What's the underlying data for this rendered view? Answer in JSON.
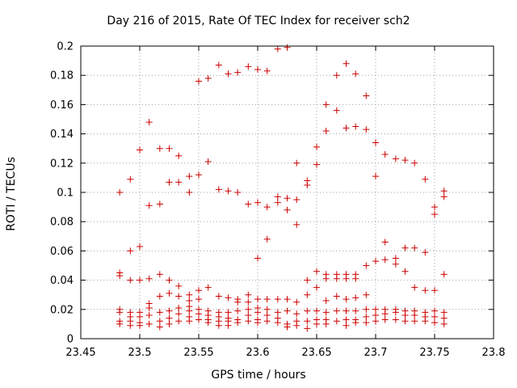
{
  "chart_data": {
    "type": "scatter",
    "title": "Day 216 of 2015, Rate Of TEC Index for receiver sch2",
    "xlabel": "GPS time / hours",
    "ylabel": "ROTI / TECUs",
    "xlim": [
      23.45,
      23.8
    ],
    "ylim": [
      0,
      0.2
    ],
    "xticks": [
      "23.45",
      "23.5",
      "23.55",
      "23.6",
      "23.65",
      "23.7",
      "23.75",
      "23.8"
    ],
    "yticks": [
      "0",
      "0.02",
      "0.04",
      "0.06",
      "0.08",
      "0.1",
      "0.12",
      "0.14",
      "0.16",
      "0.18",
      "0.2"
    ],
    "grid": true,
    "marker": "+",
    "color": "#cc0000",
    "series": [
      {
        "name": "ROTI",
        "points": [
          [
            23.483,
            0.1
          ],
          [
            23.483,
            0.045
          ],
          [
            23.483,
            0.043
          ],
          [
            23.483,
            0.02
          ],
          [
            23.483,
            0.018
          ],
          [
            23.483,
            0.012
          ],
          [
            23.483,
            0.01
          ],
          [
            23.492,
            0.109
          ],
          [
            23.492,
            0.06
          ],
          [
            23.492,
            0.04
          ],
          [
            23.492,
            0.018
          ],
          [
            23.492,
            0.015
          ],
          [
            23.492,
            0.012
          ],
          [
            23.492,
            0.009
          ],
          [
            23.5,
            0.129
          ],
          [
            23.5,
            0.063
          ],
          [
            23.5,
            0.04
          ],
          [
            23.5,
            0.018
          ],
          [
            23.5,
            0.015
          ],
          [
            23.5,
            0.011
          ],
          [
            23.5,
            0.009
          ],
          [
            23.508,
            0.148
          ],
          [
            23.508,
            0.091
          ],
          [
            23.508,
            0.041
          ],
          [
            23.508,
            0.024
          ],
          [
            23.508,
            0.021
          ],
          [
            23.508,
            0.016
          ],
          [
            23.508,
            0.01
          ],
          [
            23.517,
            0.13
          ],
          [
            23.517,
            0.092
          ],
          [
            23.517,
            0.044
          ],
          [
            23.517,
            0.029
          ],
          [
            23.517,
            0.018
          ],
          [
            23.517,
            0.012
          ],
          [
            23.517,
            0.008
          ],
          [
            23.525,
            0.13
          ],
          [
            23.525,
            0.107
          ],
          [
            23.525,
            0.04
          ],
          [
            23.525,
            0.031
          ],
          [
            23.525,
            0.019
          ],
          [
            23.525,
            0.014
          ],
          [
            23.525,
            0.01
          ],
          [
            23.533,
            0.125
          ],
          [
            23.533,
            0.107
          ],
          [
            23.533,
            0.036
          ],
          [
            23.533,
            0.029
          ],
          [
            23.533,
            0.021
          ],
          [
            23.533,
            0.017
          ],
          [
            23.533,
            0.012
          ],
          [
            23.542,
            0.111
          ],
          [
            23.542,
            0.1
          ],
          [
            23.542,
            0.03
          ],
          [
            23.542,
            0.026
          ],
          [
            23.542,
            0.022
          ],
          [
            23.542,
            0.019
          ],
          [
            23.542,
            0.015
          ],
          [
            23.542,
            0.012
          ],
          [
            23.55,
            0.176
          ],
          [
            23.55,
            0.112
          ],
          [
            23.55,
            0.033
          ],
          [
            23.55,
            0.027
          ],
          [
            23.55,
            0.02
          ],
          [
            23.55,
            0.017
          ],
          [
            23.55,
            0.013
          ],
          [
            23.558,
            0.178
          ],
          [
            23.558,
            0.121
          ],
          [
            23.558,
            0.035
          ],
          [
            23.558,
            0.019
          ],
          [
            23.558,
            0.016
          ],
          [
            23.558,
            0.013
          ],
          [
            23.558,
            0.011
          ],
          [
            23.567,
            0.187
          ],
          [
            23.567,
            0.102
          ],
          [
            23.567,
            0.029
          ],
          [
            23.567,
            0.018
          ],
          [
            23.567,
            0.015
          ],
          [
            23.567,
            0.012
          ],
          [
            23.567,
            0.009
          ],
          [
            23.575,
            0.181
          ],
          [
            23.575,
            0.101
          ],
          [
            23.575,
            0.028
          ],
          [
            23.575,
            0.018
          ],
          [
            23.575,
            0.014
          ],
          [
            23.575,
            0.012
          ],
          [
            23.575,
            0.009
          ],
          [
            23.583,
            0.182
          ],
          [
            23.583,
            0.1
          ],
          [
            23.583,
            0.027
          ],
          [
            23.583,
            0.025
          ],
          [
            23.583,
            0.019
          ],
          [
            23.583,
            0.013
          ],
          [
            23.583,
            0.011
          ],
          [
            23.592,
            0.186
          ],
          [
            23.592,
            0.092
          ],
          [
            23.592,
            0.03
          ],
          [
            23.592,
            0.025
          ],
          [
            23.592,
            0.02
          ],
          [
            23.592,
            0.016
          ],
          [
            23.592,
            0.012
          ],
          [
            23.6,
            0.184
          ],
          [
            23.6,
            0.093
          ],
          [
            23.6,
            0.055
          ],
          [
            23.6,
            0.027
          ],
          [
            23.6,
            0.021
          ],
          [
            23.6,
            0.018
          ],
          [
            23.6,
            0.013
          ],
          [
            23.6,
            0.011
          ],
          [
            23.608,
            0.183
          ],
          [
            23.608,
            0.09
          ],
          [
            23.608,
            0.068
          ],
          [
            23.608,
            0.027
          ],
          [
            23.608,
            0.02
          ],
          [
            23.608,
            0.016
          ],
          [
            23.608,
            0.012
          ],
          [
            23.617,
            0.198
          ],
          [
            23.617,
            0.097
          ],
          [
            23.617,
            0.093
          ],
          [
            23.617,
            0.027
          ],
          [
            23.617,
            0.018
          ],
          [
            23.617,
            0.014
          ],
          [
            23.617,
            0.011
          ],
          [
            23.625,
            0.199
          ],
          [
            23.625,
            0.096
          ],
          [
            23.625,
            0.088
          ],
          [
            23.625,
            0.027
          ],
          [
            23.625,
            0.019
          ],
          [
            23.625,
            0.01
          ],
          [
            23.625,
            0.008
          ],
          [
            23.633,
            0.12
          ],
          [
            23.633,
            0.095
          ],
          [
            23.633,
            0.078
          ],
          [
            23.633,
            0.025
          ],
          [
            23.633,
            0.017
          ],
          [
            23.633,
            0.012
          ],
          [
            23.633,
            0.009
          ],
          [
            23.642,
            0.108
          ],
          [
            23.642,
            0.105
          ],
          [
            23.642,
            0.04
          ],
          [
            23.642,
            0.03
          ],
          [
            23.642,
            0.019
          ],
          [
            23.642,
            0.012
          ],
          [
            23.642,
            0.007
          ],
          [
            23.65,
            0.131
          ],
          [
            23.65,
            0.119
          ],
          [
            23.65,
            0.046
          ],
          [
            23.65,
            0.035
          ],
          [
            23.65,
            0.019
          ],
          [
            23.65,
            0.013
          ],
          [
            23.65,
            0.01
          ],
          [
            23.658,
            0.16
          ],
          [
            23.658,
            0.142
          ],
          [
            23.658,
            0.044
          ],
          [
            23.658,
            0.041
          ],
          [
            23.658,
            0.026
          ],
          [
            23.658,
            0.018
          ],
          [
            23.658,
            0.013
          ],
          [
            23.658,
            0.01
          ],
          [
            23.667,
            0.18
          ],
          [
            23.667,
            0.156
          ],
          [
            23.667,
            0.044
          ],
          [
            23.667,
            0.041
          ],
          [
            23.667,
            0.029
          ],
          [
            23.667,
            0.019
          ],
          [
            23.667,
            0.012
          ],
          [
            23.675,
            0.188
          ],
          [
            23.675,
            0.144
          ],
          [
            23.675,
            0.044
          ],
          [
            23.675,
            0.041
          ],
          [
            23.675,
            0.027
          ],
          [
            23.675,
            0.019
          ],
          [
            23.675,
            0.013
          ],
          [
            23.675,
            0.009
          ],
          [
            23.683,
            0.181
          ],
          [
            23.683,
            0.145
          ],
          [
            23.683,
            0.044
          ],
          [
            23.683,
            0.041
          ],
          [
            23.683,
            0.028
          ],
          [
            23.683,
            0.019
          ],
          [
            23.683,
            0.013
          ],
          [
            23.683,
            0.011
          ],
          [
            23.692,
            0.166
          ],
          [
            23.692,
            0.143
          ],
          [
            23.692,
            0.05
          ],
          [
            23.692,
            0.03
          ],
          [
            23.692,
            0.02
          ],
          [
            23.692,
            0.015
          ],
          [
            23.692,
            0.011
          ],
          [
            23.7,
            0.134
          ],
          [
            23.7,
            0.111
          ],
          [
            23.7,
            0.053
          ],
          [
            23.7,
            0.02
          ],
          [
            23.7,
            0.016
          ],
          [
            23.7,
            0.012
          ],
          [
            23.708,
            0.126
          ],
          [
            23.708,
            0.066
          ],
          [
            23.708,
            0.054
          ],
          [
            23.708,
            0.02
          ],
          [
            23.708,
            0.017
          ],
          [
            23.708,
            0.013
          ],
          [
            23.717,
            0.123
          ],
          [
            23.717,
            0.055
          ],
          [
            23.717,
            0.051
          ],
          [
            23.717,
            0.02
          ],
          [
            23.717,
            0.018
          ],
          [
            23.717,
            0.013
          ],
          [
            23.725,
            0.122
          ],
          [
            23.725,
            0.062
          ],
          [
            23.725,
            0.046
          ],
          [
            23.725,
            0.019
          ],
          [
            23.725,
            0.016
          ],
          [
            23.725,
            0.012
          ],
          [
            23.733,
            0.12
          ],
          [
            23.733,
            0.062
          ],
          [
            23.733,
            0.035
          ],
          [
            23.733,
            0.019
          ],
          [
            23.733,
            0.016
          ],
          [
            23.733,
            0.012
          ],
          [
            23.742,
            0.109
          ],
          [
            23.742,
            0.059
          ],
          [
            23.742,
            0.033
          ],
          [
            23.742,
            0.018
          ],
          [
            23.742,
            0.015
          ],
          [
            23.742,
            0.012
          ],
          [
            23.75,
            0.09
          ],
          [
            23.75,
            0.085
          ],
          [
            23.75,
            0.033
          ],
          [
            23.75,
            0.019
          ],
          [
            23.75,
            0.015
          ],
          [
            23.75,
            0.011
          ],
          [
            23.758,
            0.101
          ],
          [
            23.758,
            0.097
          ],
          [
            23.758,
            0.044
          ],
          [
            23.758,
            0.018
          ],
          [
            23.758,
            0.014
          ],
          [
            23.758,
            0.01
          ]
        ]
      }
    ]
  }
}
